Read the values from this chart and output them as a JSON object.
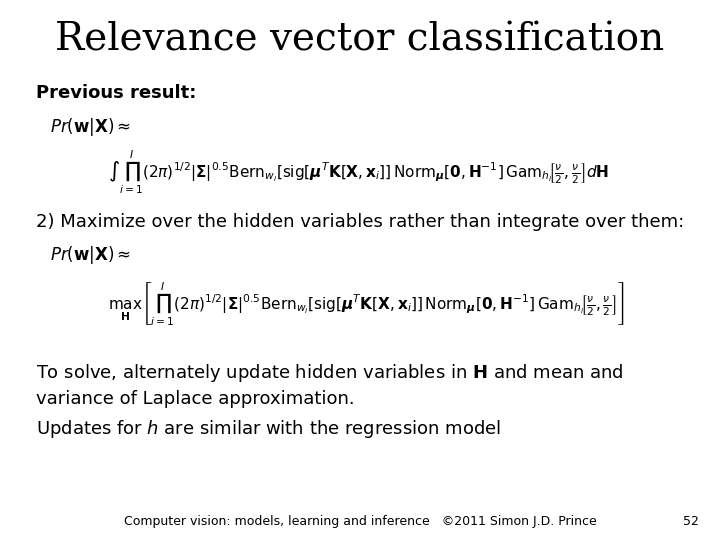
{
  "title": "Relevance vector classification",
  "title_fontsize": 28,
  "background_color": "#ffffff",
  "text_color": "#000000",
  "previous_result_label": "Previous result:",
  "eq1_line1": "$Pr(\\mathbf{w}|\\mathbf{X}) \\approx$",
  "eq1_line2": "$\\int\\prod_{i=1}^{I}(2\\pi)^{1/2}|\\boldsymbol{\\Sigma}|^{0.5}\\mathrm{Bern}_{w_i}[\\mathrm{sig}[\\boldsymbol{\\mu}^T\\mathbf{K}[\\mathbf{X},\\mathbf{x}_i]]\\,\\mathrm{Norm}_{\\boldsymbol{\\mu}}[\\mathbf{0},\\mathbf{H}^{-1}]\\,\\mathrm{Gam}_{h_i}\\!\\left[\\frac{\\nu}{2},\\frac{\\nu}{2}\\right]d\\mathbf{H}$",
  "step2_label": "2) Maximize over the hidden variables rather than integrate over them:",
  "eq2_line1": "$Pr(\\mathbf{w}|\\mathbf{X}) \\approx$",
  "eq2_line2": "$\\underset{\\mathbf{H}}{\\max}\\left[\\prod_{i=1}^{I}(2\\pi)^{1/2}|\\boldsymbol{\\Sigma}|^{0.5}\\mathrm{Bern}_{w_i}[\\mathrm{sig}[\\boldsymbol{\\mu}^T\\mathbf{K}[\\mathbf{X},\\mathbf{x}_i]]\\,\\mathrm{Norm}_{\\boldsymbol{\\mu}}[\\mathbf{0},\\mathbf{H}^{-1}]\\,\\mathrm{Gam}_{h_i}\\!\\left[\\frac{\\nu}{2},\\frac{\\nu}{2}\\right]\\right]$",
  "bottom_text1": "To solve, alternately update hidden variables in $\\mathbf{H}$ and mean and",
  "bottom_text2": "variance of Laplace approximation.",
  "bottom_text3": "Updates for $h$ are similar with the regression model",
  "footer_text": "Computer vision: models, learning and inference   ©2011 Simon J.D. Prince",
  "page_number": "52",
  "footer_fontsize": 9,
  "body_fontsize": 13,
  "label_fontsize": 13,
  "eq_fontsize": 11
}
